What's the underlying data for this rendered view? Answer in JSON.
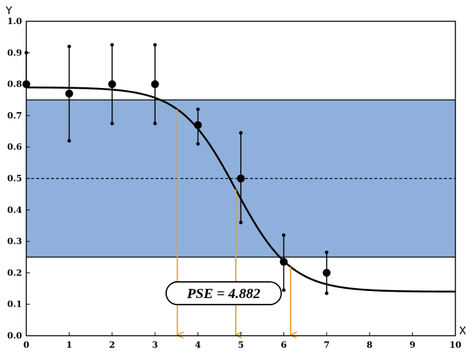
{
  "chart_data": {
    "type": "scatter",
    "title": "",
    "xlabel": "X",
    "ylabel": "Y",
    "xlim": [
      0,
      10
    ],
    "ylim": [
      0,
      1
    ],
    "x_ticks": [
      "0",
      "1",
      "2",
      "3",
      "4",
      "5",
      "6",
      "7",
      "8",
      "9",
      "10"
    ],
    "y_ticks": [
      "0.0",
      "0.1",
      "0.2",
      "0.3",
      "0.4",
      "0.5",
      "0.6",
      "0.7",
      "0.8",
      "0.9",
      "1.0"
    ],
    "points": [
      {
        "x": 0,
        "y": 0.8,
        "lower": 0.8,
        "upper": 0.9
      },
      {
        "x": 1,
        "y": 0.77,
        "lower": 0.62,
        "upper": 0.92
      },
      {
        "x": 2,
        "y": 0.8,
        "lower": 0.675,
        "upper": 0.925
      },
      {
        "x": 3,
        "y": 0.8,
        "lower": 0.675,
        "upper": 0.925
      },
      {
        "x": 4,
        "y": 0.67,
        "lower": 0.61,
        "upper": 0.72
      },
      {
        "x": 5,
        "y": 0.5,
        "lower": 0.36,
        "upper": 0.645
      },
      {
        "x": 6,
        "y": 0.235,
        "lower": 0.145,
        "upper": 0.32
      },
      {
        "x": 7,
        "y": 0.2,
        "lower": 0.135,
        "upper": 0.265
      }
    ],
    "fit_curve": {
      "lower_asymptote": 0.14,
      "upper_asymptote": 0.79,
      "midpoint": 4.882,
      "slope": 1.55
    },
    "band": {
      "y_min": 0.25,
      "y_max": 0.75,
      "color": "#8fb0dc"
    },
    "reference_line_y": 0.5,
    "markers_x": [
      3.52,
      4.882,
      6.16
    ],
    "marker_color": "#e8a030",
    "annotation": {
      "text": "PSE = 4.882",
      "x": 4.6,
      "y": 0.135
    },
    "grid": false,
    "legend": "none"
  }
}
